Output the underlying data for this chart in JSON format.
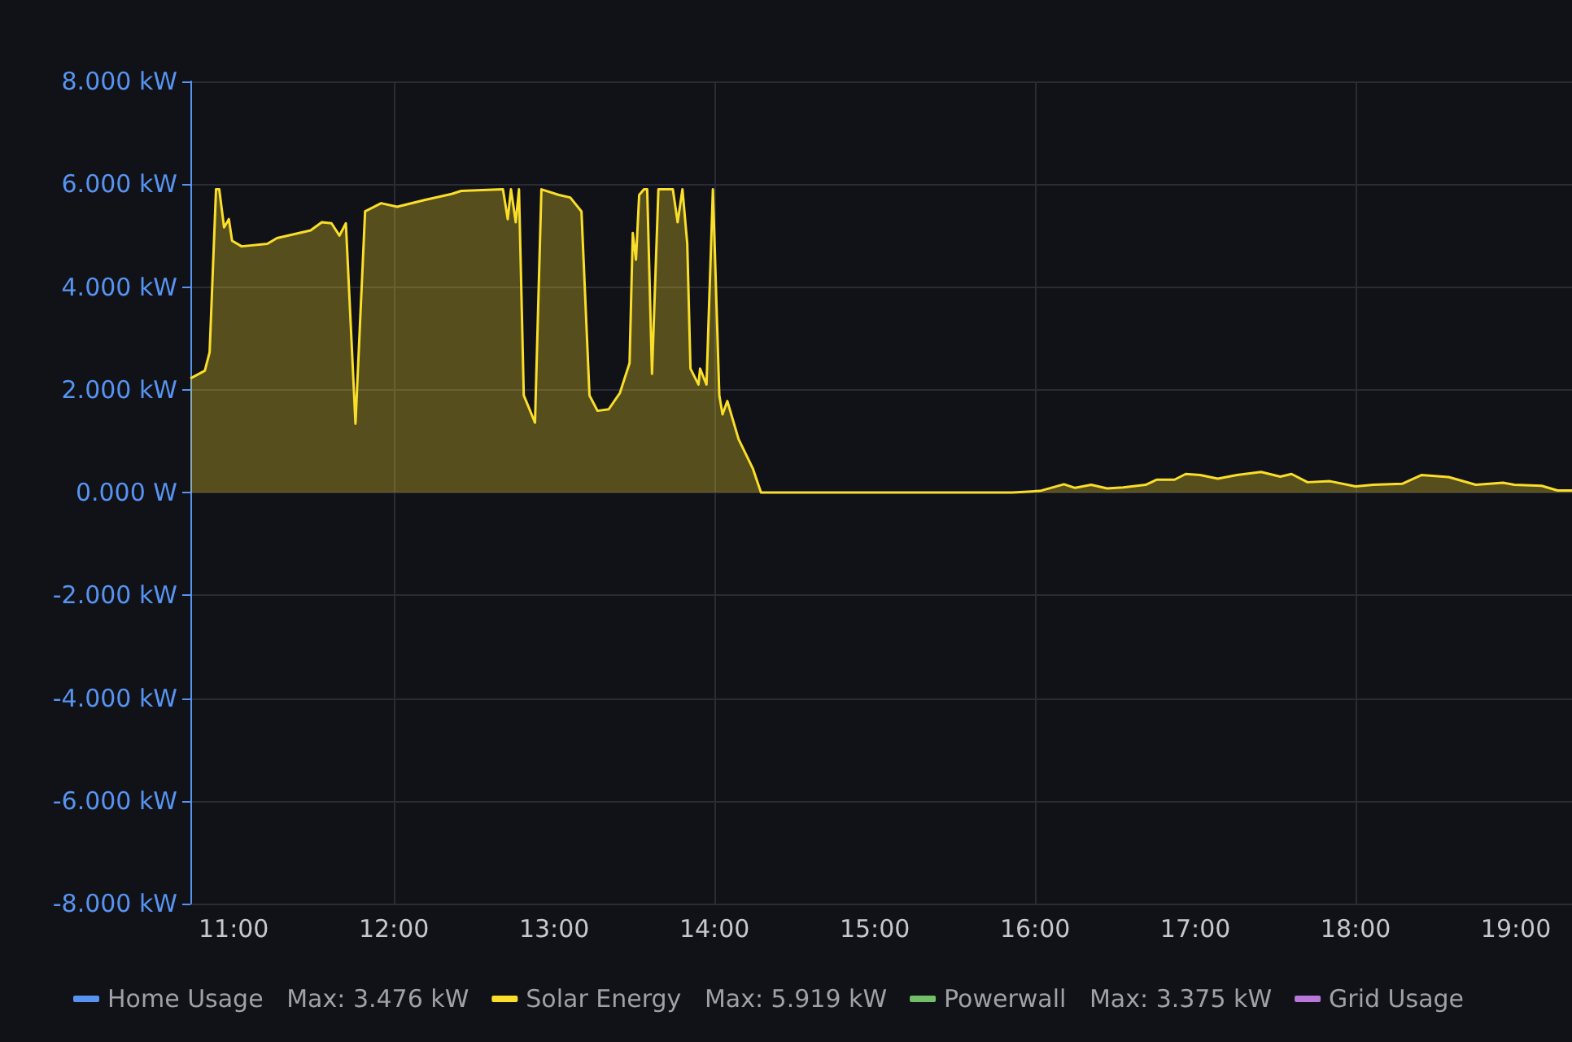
{
  "chart_data": {
    "type": "area",
    "legend": "bottom",
    "grid": true,
    "marker": "none",
    "line_style": "solid",
    "annotations": [
      "Max: 3.476 kW",
      "Max: 5.919 kW",
      "Max: 3.375 kW"
    ],
    "xlim": [
      10.73,
      19.35
    ],
    "xticks": [
      {
        "value": 11,
        "label": "11:00"
      },
      {
        "value": 12,
        "label": "12:00"
      },
      {
        "value": 13,
        "label": "13:00"
      },
      {
        "value": 14,
        "label": "14:00"
      },
      {
        "value": 15,
        "label": "15:00"
      },
      {
        "value": 16,
        "label": "16:00"
      },
      {
        "value": 17,
        "label": "17:00"
      },
      {
        "value": 18,
        "label": "18:00"
      },
      {
        "value": 19,
        "label": "19:00"
      }
    ],
    "ylim": [
      -8,
      8
    ],
    "yticks": [
      {
        "value": -8,
        "label": "-8.000 kW"
      },
      {
        "value": -6,
        "label": "-6.000 kW"
      },
      {
        "value": -4,
        "label": "-4.000 kW"
      },
      {
        "value": -2,
        "label": "-2.000 kW"
      },
      {
        "value": 0,
        "label": "0.000 W"
      },
      {
        "value": 2,
        "label": "2.000 kW"
      },
      {
        "value": 4,
        "label": "4.000 kW"
      },
      {
        "value": 6,
        "label": "6.000 kW"
      },
      {
        "value": 8,
        "label": "8.000 kW"
      }
    ],
    "series": [
      {
        "name": "Home Usage",
        "color": "#5794f2"
      },
      {
        "name": "Solar Energy",
        "color": "#fade2a",
        "x": [
          10.73,
          10.82,
          10.85,
          10.89,
          10.91,
          10.94,
          10.97,
          10.99,
          11.05,
          11.21,
          11.27,
          11.48,
          11.55,
          11.61,
          11.66,
          11.7,
          11.76,
          11.82,
          11.92,
          12.02,
          12.19,
          12.36,
          12.42,
          12.68,
          12.71,
          12.73,
          12.76,
          12.78,
          12.81,
          12.88,
          12.92,
          13.03,
          13.1,
          13.17,
          13.22,
          13.27,
          13.34,
          13.41,
          13.47,
          13.49,
          13.51,
          13.53,
          13.56,
          13.58,
          13.61,
          13.65,
          13.74,
          13.77,
          13.8,
          13.83,
          13.85,
          13.9,
          13.91,
          13.95,
          13.99,
          14.03,
          14.05,
          14.08,
          14.15,
          14.24,
          14.29,
          15.86,
          16.03,
          16.18,
          16.25,
          16.35,
          16.45,
          16.55,
          16.69,
          16.76,
          16.87,
          16.94,
          17.03,
          17.14,
          17.26,
          17.41,
          17.53,
          17.6,
          17.7,
          17.84,
          18,
          18.11,
          18.29,
          18.41,
          18.58,
          18.75,
          18.92,
          18.99,
          19.16,
          19.26,
          19.35
        ],
        "values": [
          2.22,
          2.37,
          2.73,
          5.9,
          5.9,
          5.16,
          5.32,
          4.9,
          4.79,
          4.84,
          4.95,
          5.1,
          5.26,
          5.24,
          5.0,
          5.24,
          1.34,
          5.47,
          5.63,
          5.56,
          5.69,
          5.81,
          5.87,
          5.9,
          5.32,
          5.9,
          5.26,
          5.9,
          1.89,
          1.36,
          5.9,
          5.79,
          5.74,
          5.47,
          1.89,
          1.59,
          1.62,
          1.94,
          2.52,
          5.05,
          4.53,
          5.79,
          5.9,
          5.9,
          2.31,
          5.9,
          5.9,
          5.26,
          5.9,
          4.84,
          2.41,
          2.1,
          2.41,
          2.1,
          5.9,
          1.89,
          1.52,
          1.78,
          1.04,
          0.46,
          0,
          0,
          0.03,
          0.16,
          0.09,
          0.15,
          0.08,
          0.1,
          0.15,
          0.25,
          0.25,
          0.36,
          0.34,
          0.27,
          0.34,
          0.4,
          0.31,
          0.36,
          0.2,
          0.22,
          0.12,
          0.15,
          0.17,
          0.34,
          0.3,
          0.15,
          0.19,
          0.15,
          0.13,
          0.04,
          0.04
        ]
      },
      {
        "name": "Powerwall",
        "color": "#73bf69"
      },
      {
        "name": "Grid Usage",
        "color": "#b877d9"
      }
    ]
  }
}
